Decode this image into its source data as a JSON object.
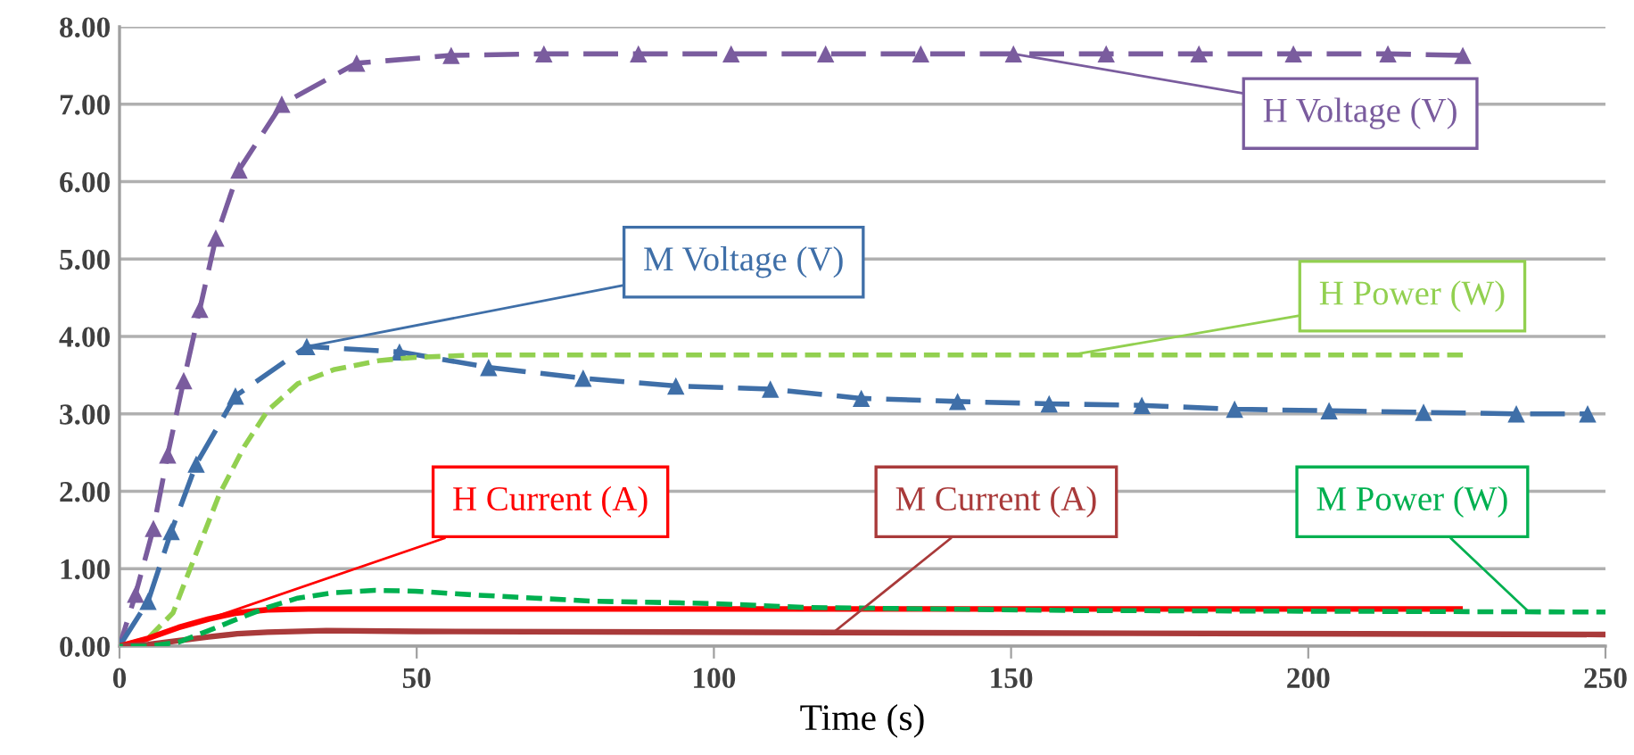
{
  "chart_data": {
    "type": "line",
    "xlabel": "Time (s)",
    "xlim": [
      0,
      250
    ],
    "xticks": [
      0,
      50,
      100,
      150,
      200,
      250
    ],
    "ylim": [
      0,
      8
    ],
    "yticks": [
      {
        "value": 0,
        "label": "0.00"
      },
      {
        "value": 1,
        "label": "1.00"
      },
      {
        "value": 2,
        "label": "2.00"
      },
      {
        "value": 3,
        "label": "3.00"
      },
      {
        "value": 4,
        "label": "4.00"
      },
      {
        "value": 5,
        "label": "5.00"
      },
      {
        "value": 6,
        "label": "6.00"
      },
      {
        "value": 7,
        "label": "7.00"
      },
      {
        "value": 8,
        "label": "8.00"
      }
    ],
    "grid": "y",
    "series": [
      {
        "color": "#7a5c9e",
        "marker": "triangle",
        "line_style": "dashed",
        "x": [
          0,
          2.7,
          5.7,
          8.1,
          10.8,
          13.5,
          16.2,
          20.1,
          27.3,
          39.9,
          55.8,
          71.4,
          87.3,
          102.9,
          118.8,
          134.8,
          150.4,
          166,
          181.6,
          197.5,
          213.4,
          226
        ],
        "values": [
          0,
          0.67,
          1.52,
          2.47,
          3.43,
          4.35,
          5.27,
          6.15,
          7.0,
          7.53,
          7.63,
          7.65,
          7.65,
          7.65,
          7.65,
          7.65,
          7.65,
          7.65,
          7.65,
          7.65,
          7.65,
          7.63
        ]
      },
      {
        "color": "#3f6fa8",
        "marker": "triangle",
        "line_style": "dashed",
        "x": [
          0,
          4.8,
          8.7,
          12.9,
          19.5,
          31.5,
          47.1,
          62.1,
          78,
          93.6,
          109.5,
          124.8,
          141,
          156.4,
          172,
          187.6,
          203.5,
          219.4,
          235,
          247
        ],
        "values": [
          0,
          0.58,
          1.48,
          2.35,
          3.23,
          3.87,
          3.8,
          3.6,
          3.46,
          3.36,
          3.32,
          3.2,
          3.16,
          3.13,
          3.11,
          3.06,
          3.04,
          3.02,
          3.0,
          3.0
        ]
      },
      {
        "color": "#92d050",
        "marker": "none",
        "line_style": "dashed",
        "x": [
          0,
          4.8,
          9,
          12.9,
          16.8,
          21,
          24.9,
          30,
          36,
          43.8,
          49.8,
          60,
          226
        ],
        "values": [
          0,
          0.1,
          0.43,
          1.2,
          1.96,
          2.58,
          3.04,
          3.39,
          3.57,
          3.69,
          3.73,
          3.76,
          3.76
        ]
      },
      {
        "color": "#ff0000",
        "marker": "none",
        "line_style": "solid",
        "x": [
          0,
          4.8,
          9.9,
          15,
          19.8,
          24.9,
          31.8,
          226
        ],
        "values": [
          0,
          0.1,
          0.24,
          0.35,
          0.43,
          0.47,
          0.48,
          0.48
        ]
      },
      {
        "color": "#a93a3a",
        "marker": "none",
        "line_style": "solid",
        "x": [
          0,
          4.8,
          9.9,
          15,
          19.8,
          24.9,
          34.8,
          49.8,
          150,
          250
        ],
        "values": [
          0,
          0.02,
          0.07,
          0.12,
          0.16,
          0.18,
          0.2,
          0.19,
          0.17,
          0.15
        ]
      },
      {
        "color": "#00b050",
        "marker": "none",
        "line_style": "dashed",
        "x": [
          0,
          5,
          9.9,
          15,
          19.8,
          24.9,
          30,
          36,
          42.9,
          49.8,
          60,
          69.9,
          79.8,
          99.9,
          115,
          160,
          250
        ],
        "values": [
          0,
          0,
          0.05,
          0.2,
          0.35,
          0.5,
          0.62,
          0.69,
          0.72,
          0.71,
          0.66,
          0.62,
          0.58,
          0.55,
          0.5,
          0.46,
          0.44
        ]
      }
    ],
    "annotations": [
      {
        "text": "H Voltage (V)",
        "x": 150.4,
        "y": 7.65
      },
      {
        "text": "M Voltage (V)",
        "x": 31.5,
        "y": 3.87
      },
      {
        "text": "H Power (W)",
        "x": 160,
        "y": 3.76
      },
      {
        "text": "H Current (A)",
        "x": 15,
        "y": 0.35
      },
      {
        "text": "M Current (A)",
        "x": 120,
        "y": 0.17
      },
      {
        "text": "M Power (W)",
        "x": 237,
        "y": 0.45
      }
    ]
  }
}
